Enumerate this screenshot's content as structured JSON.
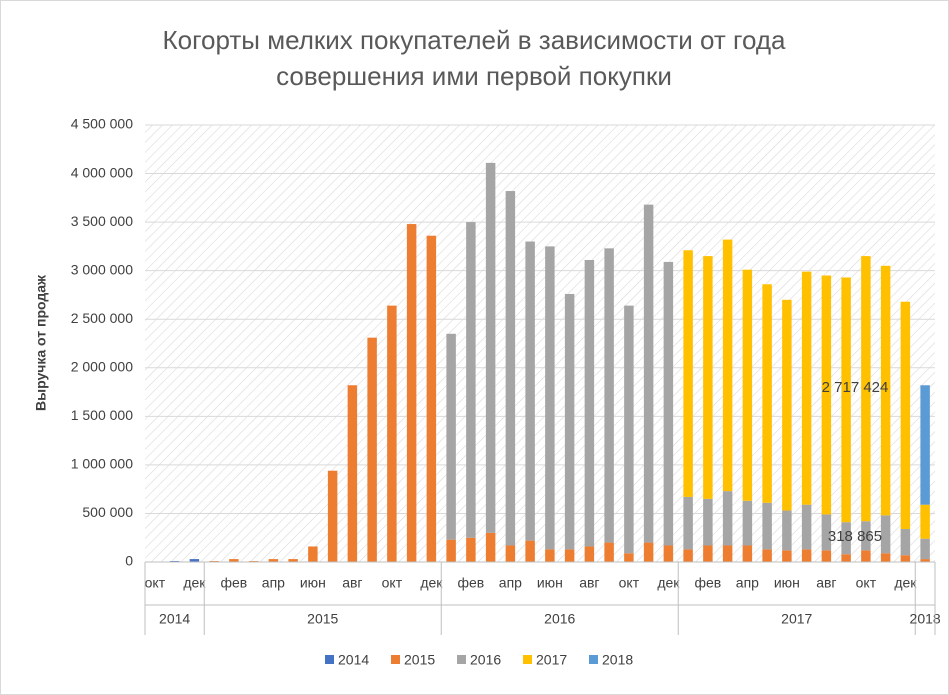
{
  "chart_data": {
    "type": "stacked_bar",
    "title": [
      "Когорты мелких покупателей в зависимости от года",
      "совершения ими первой покупки"
    ],
    "y_label": "Выручка от продаж",
    "categories": [
      "окт",
      null,
      "дек",
      null,
      "фев",
      null,
      "апр",
      null,
      "июн",
      null,
      "авг",
      null,
      "окт",
      null,
      "дек",
      null,
      "фев",
      null,
      "апр",
      null,
      "июн",
      null,
      "авг",
      null,
      "окт",
      null,
      "дек",
      null,
      "фев",
      null,
      "апр",
      null,
      "июн",
      null,
      "авг",
      null,
      "окт",
      null,
      "дек",
      null
    ],
    "groups": [
      "2014",
      "2015",
      "2016",
      "2017",
      "2018"
    ],
    "series": [
      {
        "name": "2014",
        "color": "#4472c4",
        "values": [
          5000,
          10000,
          30000,
          null,
          null,
          null,
          null,
          null,
          null,
          null,
          null,
          null,
          null,
          null,
          null,
          null,
          null,
          null,
          null,
          null,
          null,
          null,
          null,
          null,
          null,
          null,
          null,
          null,
          null,
          null,
          null,
          null,
          null,
          null,
          null,
          null,
          null,
          null,
          null,
          null
        ]
      },
      {
        "name": "2015",
        "color": "#ed7d31",
        "values": [
          null,
          null,
          null,
          10000,
          30000,
          10000,
          30000,
          30000,
          160000,
          940000,
          1820000,
          2310000,
          2640000,
          3480000,
          3360000,
          230000,
          250000,
          300000,
          170000,
          220000,
          130000,
          130000,
          160000,
          200000,
          90000,
          200000,
          170000,
          130000,
          170000,
          170000,
          170000,
          130000,
          120000,
          130000,
          120000,
          80000,
          120000,
          90000,
          70000,
          30000
        ]
      },
      {
        "name": "2016",
        "color": "#a5a5a5",
        "values": [
          null,
          null,
          null,
          null,
          null,
          null,
          null,
          null,
          null,
          null,
          null,
          null,
          null,
          null,
          null,
          2120000,
          3250000,
          3810000,
          3650000,
          3080000,
          3120000,
          2630000,
          2950000,
          3030000,
          2550000,
          3480000,
          2920000,
          540000,
          480000,
          560000,
          460000,
          480000,
          410000,
          460000,
          370000,
          330000,
          300000,
          390000,
          270000,
          210000
        ]
      },
      {
        "name": "2017",
        "color": "#ffc000",
        "values": [
          null,
          null,
          null,
          null,
          null,
          null,
          null,
          null,
          null,
          null,
          null,
          null,
          null,
          null,
          null,
          null,
          null,
          null,
          null,
          null,
          null,
          null,
          null,
          null,
          null,
          null,
          null,
          2540000,
          2500000,
          2590000,
          2380000,
          2250000,
          2170000,
          2400000,
          2460000,
          2520000,
          2730000,
          2570000,
          2340000,
          350000
        ]
      },
      {
        "name": "2018",
        "color": "#5b9bd5",
        "values": [
          null,
          null,
          null,
          null,
          null,
          null,
          null,
          null,
          null,
          null,
          null,
          null,
          null,
          null,
          null,
          null,
          null,
          null,
          null,
          null,
          null,
          null,
          null,
          null,
          null,
          null,
          null,
          null,
          null,
          null,
          null,
          null,
          null,
          null,
          null,
          null,
          null,
          null,
          null,
          1230000
        ]
      }
    ],
    "annotations": [
      "2 717 424",
      "318 865"
    ],
    "ylim": [
      0,
      4500000
    ],
    "yticks": [
      0,
      {
        "value": 500000,
        "label": "500 000"
      },
      {
        "value": 1000000,
        "label": "1 000 000"
      },
      {
        "value": 1500000,
        "label": "1 500 000"
      },
      {
        "value": 2000000,
        "label": "2 000 000"
      },
      {
        "value": 2500000,
        "label": "2 500 000"
      },
      {
        "value": 3000000,
        "label": "3 000 000"
      },
      {
        "value": 3500000,
        "label": "3 500 000"
      },
      {
        "value": 4000000,
        "label": "4 000 000"
      },
      {
        "value": 4500000,
        "label": "4 500 000"
      }
    ],
    "grid": true,
    "legend": "bottom"
  }
}
